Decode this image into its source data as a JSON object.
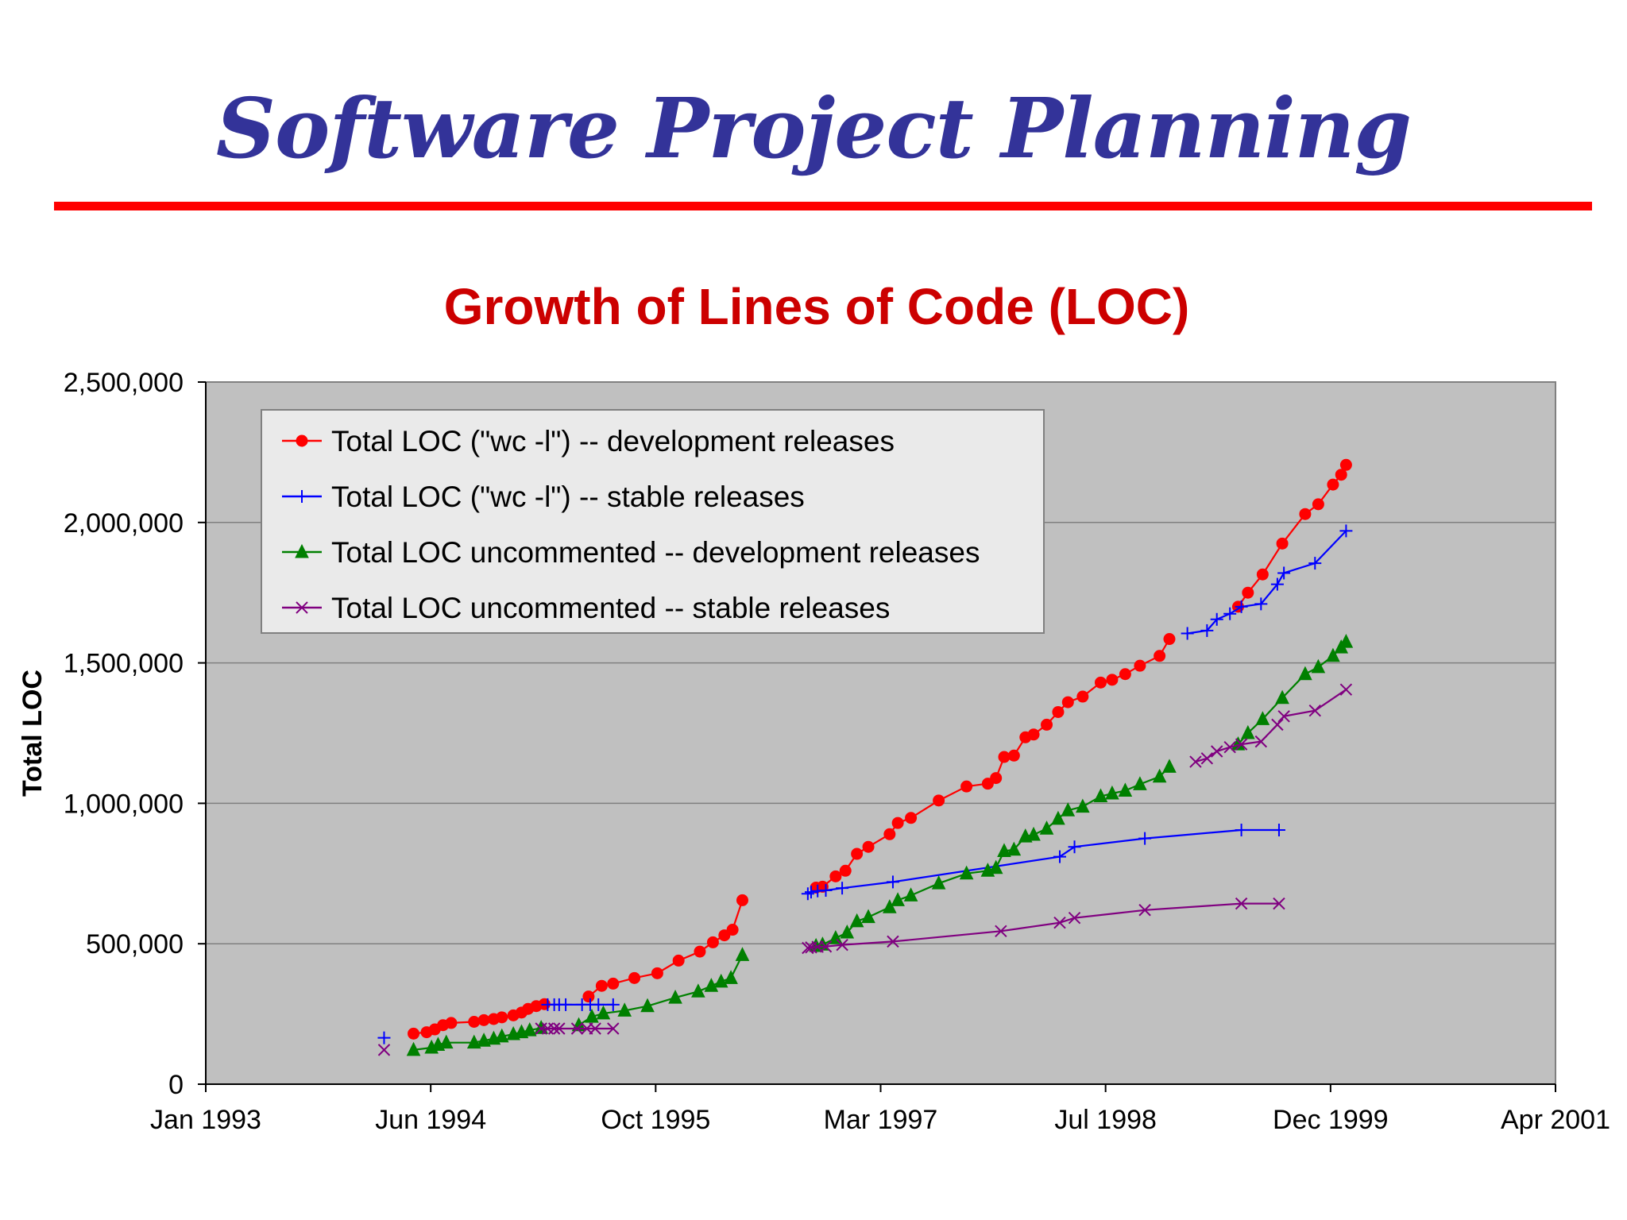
{
  "slide": {
    "title": "Software Project Planning",
    "title_color": "#333399",
    "rule_color": "#ff0000"
  },
  "chart_data": {
    "type": "line",
    "title": "Growth of Lines of Code (LOC)",
    "title_color": "#cc0000",
    "xlabel": "",
    "ylabel": "Total LOC",
    "xlim": [
      1993.0,
      2001.25
    ],
    "ylim": [
      0,
      2500000
    ],
    "grid": true,
    "plot_background": "#c0c0c0",
    "legend_position": "top-left",
    "x_ticks": [
      {
        "value": 1993.0,
        "label": "Jan 1993"
      },
      {
        "value": 1994.375,
        "label": "Jun 1994"
      },
      {
        "value": 1995.75,
        "label": "Oct 1995"
      },
      {
        "value": 1997.125,
        "label": "Mar 1997"
      },
      {
        "value": 1998.5,
        "label": "Jul 1998"
      },
      {
        "value": 1999.875,
        "label": "Dec 1999"
      },
      {
        "value": 2001.25,
        "label": "Apr 2001"
      }
    ],
    "y_ticks": [
      {
        "value": 0,
        "label": "0"
      },
      {
        "value": 500000,
        "label": "500,000"
      },
      {
        "value": 1000000,
        "label": "1,000,000"
      },
      {
        "value": 1500000,
        "label": "1,500,000"
      },
      {
        "value": 2000000,
        "label": "2,000,000"
      },
      {
        "value": 2500000,
        "label": "2,500,000"
      }
    ],
    "series": [
      {
        "name": "Total LOC (\"wc -l\") -- development releases",
        "color": "#ff0000",
        "marker": "circle",
        "segments": [
          [
            [
              1994.27,
              180000
            ],
            [
              1994.35,
              185000
            ],
            [
              1994.4,
              195000
            ],
            [
              1994.45,
              210000
            ],
            [
              1994.5,
              218000
            ],
            [
              1994.64,
              222000
            ],
            [
              1994.7,
              228000
            ],
            [
              1994.76,
              232000
            ],
            [
              1994.81,
              238000
            ],
            [
              1994.88,
              245000
            ],
            [
              1994.93,
              255000
            ],
            [
              1994.97,
              268000
            ],
            [
              1995.02,
              278000
            ],
            [
              1995.07,
              285000
            ]
          ],
          [
            [
              1995.34,
              312000
            ],
            [
              1995.42,
              350000
            ],
            [
              1995.49,
              358000
            ],
            [
              1995.62,
              378000
            ],
            [
              1995.76,
              395000
            ],
            [
              1995.89,
              440000
            ],
            [
              1996.02,
              472000
            ],
            [
              1996.1,
              505000
            ],
            [
              1996.17,
              530000
            ],
            [
              1996.22,
              550000
            ],
            [
              1996.28,
              655000
            ]
          ],
          [
            [
              1996.73,
              700000
            ],
            [
              1996.77,
              703000
            ],
            [
              1996.85,
              740000
            ],
            [
              1996.91,
              760000
            ],
            [
              1996.98,
              820000
            ],
            [
              1997.05,
              845000
            ],
            [
              1997.18,
              890000
            ],
            [
              1997.23,
              930000
            ],
            [
              1997.31,
              948000
            ],
            [
              1997.48,
              1010000
            ],
            [
              1997.65,
              1060000
            ],
            [
              1997.78,
              1070000
            ],
            [
              1997.83,
              1090000
            ],
            [
              1997.88,
              1165000
            ],
            [
              1997.94,
              1170000
            ],
            [
              1998.01,
              1235000
            ],
            [
              1998.06,
              1245000
            ],
            [
              1998.14,
              1280000
            ],
            [
              1998.21,
              1325000
            ],
            [
              1998.27,
              1360000
            ],
            [
              1998.36,
              1380000
            ],
            [
              1998.47,
              1430000
            ],
            [
              1998.54,
              1440000
            ],
            [
              1998.62,
              1460000
            ],
            [
              1998.71,
              1490000
            ],
            [
              1998.83,
              1525000
            ],
            [
              1998.89,
              1585000
            ]
          ],
          [
            [
              1999.31,
              1700000
            ],
            [
              1999.37,
              1750000
            ],
            [
              1999.46,
              1815000
            ],
            [
              1999.58,
              1925000
            ],
            [
              1999.72,
              2030000
            ],
            [
              1999.8,
              2065000
            ],
            [
              1999.89,
              2135000
            ],
            [
              1999.94,
              2170000
            ],
            [
              1999.97,
              2205000
            ]
          ]
        ]
      },
      {
        "name": "Total LOC (\"wc -l\") -- stable releases",
        "color": "#0000ff",
        "marker": "plus",
        "segments": [
          [
            [
              1994.09,
              165000
            ]
          ],
          [
            [
              1995.09,
              283000
            ],
            [
              1995.13,
              283000
            ],
            [
              1995.16,
              283000
            ],
            [
              1995.2,
              283000
            ],
            [
              1995.3,
              283000
            ],
            [
              1995.35,
              283000
            ],
            [
              1995.4,
              283000
            ],
            [
              1995.49,
              283000
            ]
          ],
          [
            [
              1996.68,
              678000
            ],
            [
              1996.7,
              684000
            ],
            [
              1996.74,
              688000
            ],
            [
              1996.79,
              690000
            ],
            [
              1996.89,
              698000
            ],
            [
              1997.2,
              720000
            ],
            [
              1998.22,
              810000
            ],
            [
              1998.31,
              845000
            ],
            [
              1998.74,
              875000
            ],
            [
              1999.33,
              905000
            ],
            [
              1999.56,
              905000
            ]
          ],
          [
            [
              1999.0,
              1605000
            ],
            [
              1999.12,
              1615000
            ],
            [
              1999.18,
              1655000
            ],
            [
              1999.26,
              1675000
            ],
            [
              1999.33,
              1700000
            ],
            [
              1999.45,
              1710000
            ],
            [
              1999.55,
              1780000
            ],
            [
              1999.59,
              1820000
            ],
            [
              1999.78,
              1855000
            ],
            [
              1999.97,
              1970000
            ]
          ]
        ]
      },
      {
        "name": "Total LOC uncommented -- development releases",
        "color": "#008000",
        "marker": "triangle",
        "segments": [
          [
            [
              1994.27,
              122000
            ],
            [
              1994.38,
              130000
            ],
            [
              1994.42,
              140000
            ],
            [
              1994.47,
              148000
            ],
            [
              1994.64,
              148000
            ],
            [
              1994.7,
              155000
            ],
            [
              1994.76,
              162000
            ],
            [
              1994.81,
              170000
            ],
            [
              1994.88,
              178000
            ],
            [
              1994.93,
              185000
            ],
            [
              1994.98,
              192000
            ],
            [
              1995.05,
              200000
            ]
          ],
          [
            [
              1995.28,
              210000
            ],
            [
              1995.36,
              240000
            ],
            [
              1995.43,
              252000
            ],
            [
              1995.56,
              262000
            ],
            [
              1995.7,
              278000
            ],
            [
              1995.87,
              308000
            ],
            [
              1996.01,
              330000
            ],
            [
              1996.09,
              350000
            ],
            [
              1996.15,
              365000
            ],
            [
              1996.21,
              378000
            ],
            [
              1996.28,
              460000
            ]
          ],
          [
            [
              1996.73,
              492000
            ],
            [
              1996.77,
              497000
            ],
            [
              1996.85,
              520000
            ],
            [
              1996.92,
              540000
            ],
            [
              1996.98,
              580000
            ],
            [
              1997.05,
              595000
            ],
            [
              1997.18,
              630000
            ],
            [
              1997.23,
              655000
            ],
            [
              1997.31,
              672000
            ],
            [
              1997.48,
              715000
            ],
            [
              1997.65,
              750000
            ],
            [
              1997.78,
              760000
            ],
            [
              1997.83,
              770000
            ],
            [
              1997.88,
              830000
            ],
            [
              1997.94,
              835000
            ],
            [
              1998.01,
              882000
            ],
            [
              1998.06,
              888000
            ],
            [
              1998.14,
              910000
            ],
            [
              1998.21,
              945000
            ],
            [
              1998.27,
              975000
            ],
            [
              1998.36,
              988000
            ],
            [
              1998.47,
              1025000
            ],
            [
              1998.54,
              1035000
            ],
            [
              1998.62,
              1045000
            ],
            [
              1998.71,
              1068000
            ],
            [
              1998.83,
              1095000
            ],
            [
              1998.89,
              1130000
            ]
          ],
          [
            [
              1999.31,
              1210000
            ],
            [
              1999.37,
              1250000
            ],
            [
              1999.46,
              1300000
            ],
            [
              1999.58,
              1375000
            ],
            [
              1999.72,
              1460000
            ],
            [
              1999.8,
              1485000
            ],
            [
              1999.89,
              1525000
            ],
            [
              1999.94,
              1555000
            ],
            [
              1999.97,
              1575000
            ]
          ]
        ]
      },
      {
        "name": "Total LOC uncommented -- stable releases",
        "color": "#800080",
        "marker": "x",
        "segments": [
          [
            [
              1994.09,
              122000
            ]
          ],
          [
            [
              1995.05,
              198000
            ],
            [
              1995.09,
              198000
            ],
            [
              1995.13,
              198000
            ],
            [
              1995.16,
              198000
            ],
            [
              1995.27,
              198000
            ],
            [
              1995.33,
              198000
            ],
            [
              1995.38,
              198000
            ],
            [
              1995.49,
              198000
            ]
          ],
          [
            [
              1996.68,
              485000
            ],
            [
              1996.7,
              487000
            ],
            [
              1996.74,
              489000
            ],
            [
              1996.79,
              490000
            ],
            [
              1996.89,
              496000
            ],
            [
              1997.2,
              508000
            ],
            [
              1997.86,
              545000
            ],
            [
              1998.22,
              575000
            ],
            [
              1998.31,
              592000
            ],
            [
              1998.74,
              620000
            ],
            [
              1999.33,
              643000
            ],
            [
              1999.56,
              643000
            ]
          ],
          [
            [
              1999.05,
              1148000
            ],
            [
              1999.12,
              1160000
            ],
            [
              1999.18,
              1185000
            ],
            [
              1999.26,
              1200000
            ],
            [
              1999.33,
              1210000
            ],
            [
              1999.45,
              1220000
            ],
            [
              1999.55,
              1280000
            ],
            [
              1999.59,
              1310000
            ],
            [
              1999.78,
              1330000
            ],
            [
              1999.97,
              1405000
            ]
          ]
        ]
      }
    ]
  }
}
